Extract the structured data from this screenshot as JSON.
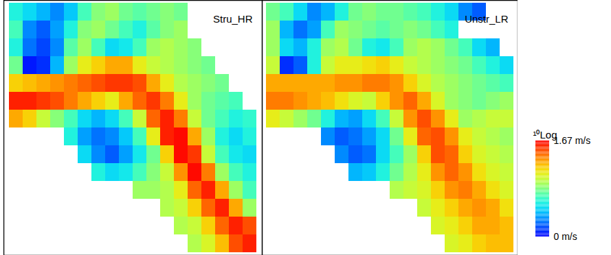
{
  "chart_data": [
    {
      "type": "heatmap",
      "title": "Stru_HR",
      "tick_labels": false,
      "cells": [
        [
          0.6,
          0.5,
          0.4,
          0.3,
          0.45,
          0.7,
          0.85,
          0.9,
          0.8,
          0.75,
          0.8,
          0.85,
          0.8,
          null,
          null,
          null,
          null,
          null
        ],
        [
          0.7,
          0.3,
          0.2,
          0.35,
          0.6,
          0.85,
          0.9,
          0.8,
          0.7,
          0.6,
          0.75,
          0.85,
          0.9,
          null,
          null,
          null,
          null,
          null
        ],
        [
          0.6,
          0.25,
          0.15,
          0.3,
          0.75,
          0.9,
          0.7,
          0.5,
          0.55,
          0.7,
          0.9,
          0.95,
          0.9,
          0.85,
          null,
          null,
          null,
          null
        ],
        [
          0.8,
          0.05,
          0.1,
          0.4,
          0.9,
          1.1,
          1.2,
          1.3,
          1.3,
          1.1,
          1.0,
          0.95,
          0.9,
          0.85,
          0.8,
          null,
          null,
          null
        ],
        [
          1.2,
          1.25,
          1.3,
          1.35,
          1.4,
          1.45,
          1.5,
          1.55,
          1.55,
          1.5,
          1.3,
          1.1,
          0.95,
          0.9,
          0.85,
          0.8,
          null,
          null
        ],
        [
          1.6,
          1.6,
          1.55,
          1.5,
          1.4,
          1.3,
          1.2,
          1.1,
          1.3,
          1.45,
          1.55,
          1.4,
          1.1,
          0.9,
          0.8,
          0.75,
          0.7,
          null
        ],
        [
          1.3,
          1.2,
          1.0,
          0.85,
          0.7,
          0.5,
          0.4,
          0.5,
          0.7,
          1.0,
          1.45,
          1.6,
          1.4,
          1.0,
          0.8,
          0.7,
          0.6,
          0.65
        ],
        [
          null,
          null,
          null,
          null,
          0.6,
          0.35,
          0.25,
          0.3,
          0.45,
          0.7,
          1.1,
          1.6,
          1.65,
          1.3,
          0.9,
          0.6,
          0.5,
          0.6
        ],
        [
          null,
          null,
          null,
          null,
          null,
          0.5,
          0.3,
          0.2,
          0.35,
          0.55,
          0.8,
          1.2,
          1.65,
          1.55,
          1.0,
          0.7,
          0.55,
          0.5
        ],
        [
          null,
          null,
          null,
          null,
          null,
          null,
          0.6,
          0.5,
          0.55,
          0.7,
          0.85,
          1.0,
          1.35,
          1.65,
          1.4,
          0.9,
          0.7,
          0.6
        ],
        [
          null,
          null,
          null,
          null,
          null,
          null,
          null,
          null,
          null,
          0.9,
          0.9,
          0.95,
          1.1,
          1.45,
          1.6,
          1.3,
          0.9,
          0.7
        ],
        [
          null,
          null,
          null,
          null,
          null,
          null,
          null,
          null,
          null,
          null,
          null,
          0.95,
          1.0,
          1.2,
          1.45,
          1.6,
          1.3,
          0.9
        ],
        [
          null,
          null,
          null,
          null,
          null,
          null,
          null,
          null,
          null,
          null,
          null,
          null,
          0.95,
          1.0,
          1.2,
          1.45,
          1.6,
          1.5
        ],
        [
          null,
          null,
          null,
          null,
          null,
          null,
          null,
          null,
          null,
          null,
          null,
          null,
          null,
          0.95,
          1.05,
          1.25,
          1.5,
          1.6
        ]
      ]
    },
    {
      "type": "heatmap",
      "title": "Unstr_LR",
      "tick_labels": false,
      "cells": [
        [
          0.8,
          0.7,
          0.5,
          0.3,
          0.4,
          0.6,
          0.8,
          0.85,
          0.8,
          0.8,
          0.75,
          0.7,
          0.6,
          0.5,
          0.3,
          0.2,
          null,
          null
        ],
        [
          0.9,
          0.4,
          0.25,
          0.35,
          0.7,
          0.9,
          0.85,
          0.8,
          0.75,
          0.8,
          0.85,
          0.8,
          0.7,
          0.6,
          null,
          null,
          null,
          null
        ],
        [
          0.9,
          0.5,
          0.4,
          0.6,
          0.9,
          0.95,
          0.8,
          0.6,
          0.55,
          0.7,
          0.9,
          0.95,
          0.9,
          0.8,
          0.7,
          0.5,
          0.4,
          null
        ],
        [
          1.0,
          0.1,
          0.2,
          0.6,
          1.0,
          1.1,
          1.1,
          1.15,
          1.2,
          1.1,
          1.0,
          0.95,
          0.9,
          0.85,
          0.8,
          0.7,
          0.6,
          0.5
        ],
        [
          1.3,
          1.3,
          1.3,
          1.3,
          1.3,
          1.35,
          1.35,
          1.4,
          1.4,
          1.35,
          1.2,
          1.05,
          0.95,
          0.9,
          0.85,
          0.8,
          0.75,
          0.7
        ],
        [
          1.4,
          1.4,
          1.35,
          1.3,
          1.25,
          1.15,
          1.05,
          1.0,
          1.2,
          1.35,
          1.45,
          1.3,
          1.05,
          0.9,
          0.85,
          0.8,
          0.85,
          0.9
        ],
        [
          1.1,
          1.0,
          0.9,
          0.8,
          0.6,
          0.4,
          0.35,
          0.5,
          0.7,
          1.0,
          1.35,
          1.5,
          1.35,
          1.1,
          0.9,
          0.95,
          1.0,
          1.0
        ],
        [
          null,
          null,
          null,
          null,
          0.3,
          0.2,
          0.25,
          0.35,
          0.5,
          0.8,
          1.1,
          1.45,
          1.5,
          1.35,
          1.1,
          1.0,
          0.95,
          0.9
        ],
        [
          null,
          null,
          null,
          null,
          null,
          0.3,
          0.2,
          0.25,
          0.5,
          0.7,
          0.9,
          1.2,
          1.5,
          1.45,
          1.2,
          1.05,
          1.0,
          0.95
        ],
        [
          null,
          null,
          null,
          null,
          null,
          null,
          0.4,
          0.45,
          0.6,
          0.8,
          0.95,
          1.1,
          1.35,
          1.45,
          1.35,
          1.15,
          1.05,
          1.0
        ],
        [
          null,
          null,
          null,
          null,
          null,
          null,
          null,
          null,
          null,
          0.95,
          1.0,
          1.05,
          1.2,
          1.35,
          1.4,
          1.3,
          1.15,
          1.05
        ],
        [
          null,
          null,
          null,
          null,
          null,
          null,
          null,
          null,
          null,
          null,
          null,
          1.0,
          1.1,
          1.2,
          1.3,
          1.35,
          1.3,
          1.15
        ],
        [
          null,
          null,
          null,
          null,
          null,
          null,
          null,
          null,
          null,
          null,
          null,
          null,
          1.05,
          1.1,
          1.2,
          1.3,
          1.3,
          1.25
        ],
        [
          null,
          null,
          null,
          null,
          null,
          null,
          null,
          null,
          null,
          null,
          null,
          null,
          null,
          1.05,
          1.1,
          1.2,
          1.25,
          1.25
        ]
      ],
      "colorbar": {
        "title": "¹⁰Log",
        "range": [
          0,
          1.67
        ],
        "ticks": [
          {
            "value": 1.67,
            "label": "1.67 m/s"
          },
          {
            "value": 0,
            "label": "0 m/s"
          }
        ]
      }
    }
  ]
}
